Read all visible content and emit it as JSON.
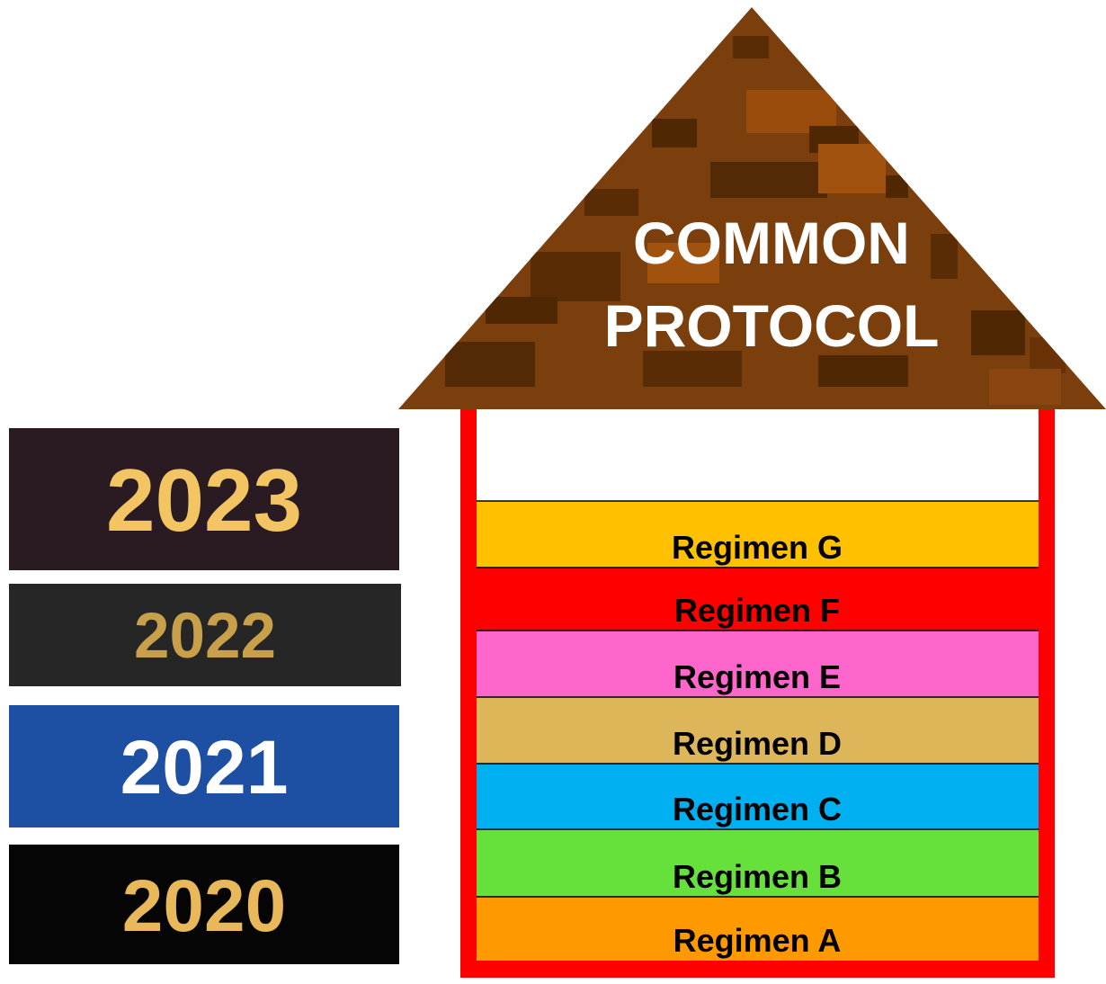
{
  "roof": {
    "title_lines": [
      "COMMON",
      "PROTOCOL"
    ]
  },
  "years": [
    {
      "label": "2023",
      "background": "#2a1a22",
      "color": "#f3c562"
    },
    {
      "label": "2022",
      "background": "#262626",
      "color": "#c9a04a"
    },
    {
      "label": "2021",
      "background": "#1d4fa3",
      "color": "#ffffff"
    },
    {
      "label": "2020",
      "background": "#050505",
      "color": "#e8b85a"
    }
  ],
  "regimens": [
    {
      "label": "Regimen G",
      "color": "#ffc000"
    },
    {
      "label": "Regimen F",
      "color": "#ff0000"
    },
    {
      "label": "Regimen E",
      "color": "#ff66cc"
    },
    {
      "label": "Regimen D",
      "color": "#ddb65a"
    },
    {
      "label": "Regimen C",
      "color": "#00b0f0"
    },
    {
      "label": "Regimen B",
      "color": "#66e03a"
    },
    {
      "label": "Regimen A",
      "color": "#ff9900"
    }
  ]
}
